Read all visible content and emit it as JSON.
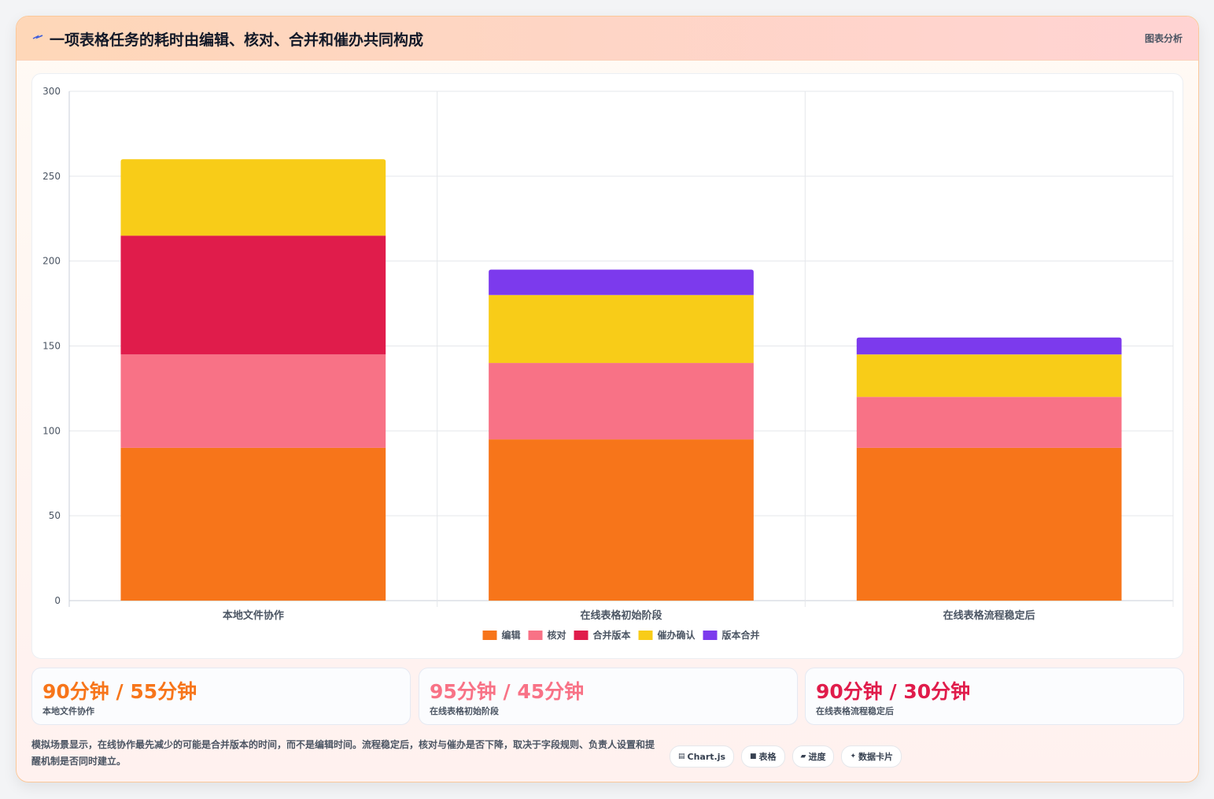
{
  "header": {
    "icon": "lightning-icon",
    "title": "一项表格任务的耗时由编辑、核对、合并和催办共同构成",
    "link_label": "图表分析"
  },
  "chart_data": {
    "type": "bar",
    "stacked": true,
    "categories": [
      "本地文件协作",
      "在线表格初始阶段",
      "在线表格流程稳定后"
    ],
    "series": [
      {
        "name": "编辑",
        "color": "#f7751a",
        "values": [
          90,
          95,
          90
        ]
      },
      {
        "name": "核对",
        "color": "#f87286",
        "values": [
          55,
          45,
          30
        ]
      },
      {
        "name": "合并版本",
        "color": "#e01c4b",
        "values": [
          70,
          0,
          0
        ]
      },
      {
        "name": "催办确认",
        "color": "#f8cc18",
        "values": [
          45,
          40,
          25
        ]
      },
      {
        "name": "版本合并",
        "color": "#7c3aed",
        "values": [
          0,
          15,
          10
        ]
      }
    ],
    "ylim": [
      0,
      300
    ],
    "yticks": [
      0,
      50,
      100,
      150,
      200,
      250,
      300
    ],
    "grid": true,
    "legend": "bottom-center"
  },
  "stats": [
    {
      "value": "90分钟 / 55分钟",
      "label": "本地文件协作",
      "color": "#f7751a"
    },
    {
      "value": "95分钟 / 45分钟",
      "label": "在线表格初始阶段",
      "color": "#f87286"
    },
    {
      "value": "90分钟 / 30分钟",
      "label": "在线表格流程稳定后",
      "color": "#e01c4b"
    }
  ],
  "footnote": "模拟场景显示，在线协作最先减少的可能是合并版本的时间，而不是编辑时间。流程稳定后，核对与催办是否下降，取决于字段规则、负责人设置和提醒机制是否同时建立。",
  "tags": [
    {
      "icon": "chart-icon",
      "glyph": "▤",
      "label": "Chart.js"
    },
    {
      "icon": "table-icon",
      "glyph": "■",
      "label": "表格"
    },
    {
      "icon": "progress-icon",
      "glyph": "▰",
      "label": "进度"
    },
    {
      "icon": "sparkle-icon",
      "glyph": "✦",
      "label": "数据卡片"
    }
  ]
}
